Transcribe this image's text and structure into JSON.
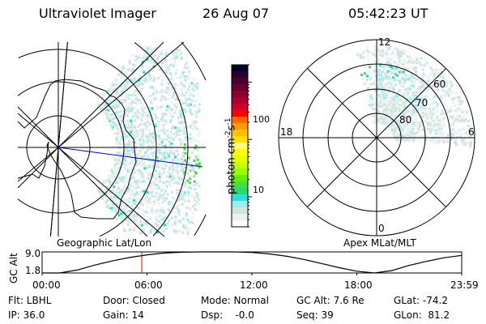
{
  "header": {
    "instrument": "Ultraviolet Imager",
    "date": "26 Aug 07",
    "time": "05:42:23 UT"
  },
  "left_map": {
    "label": "Geographic Lat/Lon"
  },
  "right_map": {
    "label": "Apex MLat/MLT",
    "mlt_labels": {
      "top": "12",
      "bottom": "0",
      "left": "18",
      "right": "6"
    },
    "lat_labels": [
      "60",
      "70",
      "80"
    ]
  },
  "colorbar": {
    "label_main": "photon cm",
    "label_exp1": "-2",
    "label_mid": "s",
    "label_exp2": "-1",
    "tick_labels": [
      "100",
      "10"
    ],
    "scale": "log",
    "colors": [
      "#000033",
      "#2a0028",
      "#4a0030",
      "#6a0030",
      "#8a0030",
      "#aa0030",
      "#cc0030",
      "#ff0000",
      "#ff6a00",
      "#ff9a00",
      "#ffc000",
      "#ffde00",
      "#ffff80",
      "#ffff00",
      "#e6ff00",
      "#c6ff00",
      "#99ff00",
      "#66ee00",
      "#44e040",
      "#2ad870",
      "#2ae0d8",
      "#99eef0",
      "#d0e2e2",
      "#e8f2ee",
      "#ffffff"
    ]
  },
  "chart_data": {
    "type": "line",
    "ylabel": "GC Alt",
    "y_tick_labels": [
      "9.0",
      "1.8"
    ],
    "ylim": [
      1.8,
      9.0
    ],
    "x_tick_labels": [
      "00:00",
      "06:00",
      "12:00",
      "18:00",
      "23:59"
    ],
    "xlim_hours": [
      0,
      24
    ],
    "current_time_hours": 5.7,
    "current_marker_color": "#dd0000",
    "x": [
      0,
      1,
      2,
      3,
      4,
      5,
      6,
      7,
      8,
      9,
      10,
      11,
      12,
      13,
      14,
      15,
      16,
      17,
      18,
      19,
      20,
      21,
      22,
      23,
      24
    ],
    "y": [
      1.8,
      1.8,
      2.8,
      4.5,
      5.9,
      7.1,
      8.0,
      8.6,
      8.9,
      9.0,
      9.0,
      9.0,
      8.8,
      8.3,
      7.5,
      6.4,
      5.0,
      3.6,
      2.4,
      1.8,
      2.6,
      4.4,
      5.8,
      7.0,
      7.8
    ]
  },
  "info": {
    "row1": [
      "Flt: LBHL",
      "Door: Closed",
      "Mode: Normal",
      "GC Alt: 7.6 Re",
      "GLat: -74.2"
    ],
    "row2": [
      "IP: 36.0",
      "Gain: 14",
      "Dsp:    -0.0",
      "Seq: 39",
      "GLon:  81.2"
    ]
  }
}
